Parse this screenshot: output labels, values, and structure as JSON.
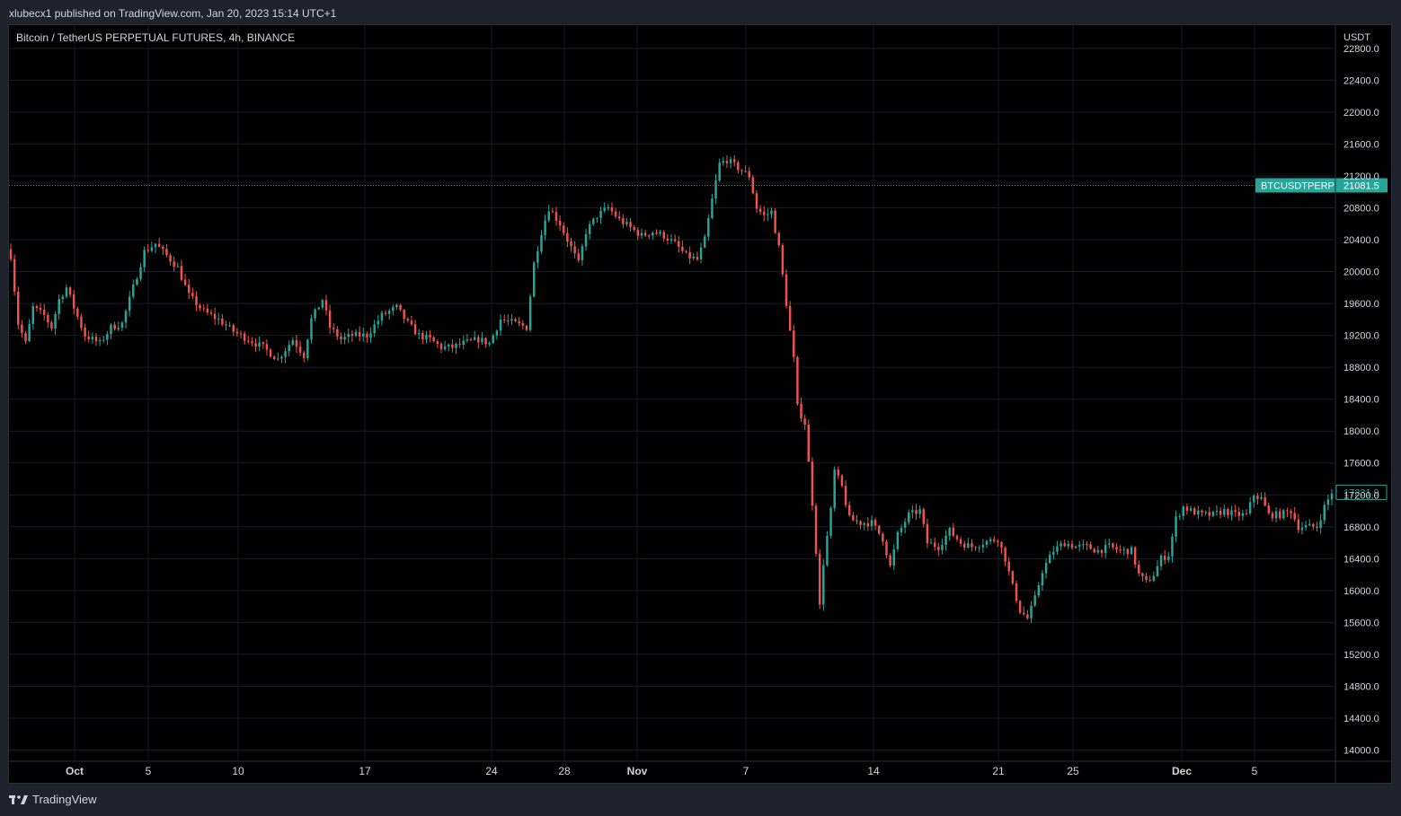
{
  "header": {
    "published_line": "xlubecx1 published on TradingView.com, Jan 20, 2023 15:14 UTC+1"
  },
  "legend": {
    "symbol_line": "Bitcoin / TetherUS PERPETUAL FUTURES, 4h, BINANCE"
  },
  "footer": {
    "brand_name": "TradingView"
  },
  "colors": {
    "up": "#26a69a",
    "down": "#ef5350",
    "background": "#000000",
    "grid": "#1a1d26",
    "axis_text": "#d1d4dc",
    "tag_fill": "#26a69a"
  },
  "chart_data": {
    "type": "candlestick",
    "title": "Bitcoin / TetherUS PERPETUAL FUTURES, 4h, BINANCE",
    "y_unit": "USDT",
    "ylim": [
      13850,
      22950
    ],
    "y_ticks": [
      "22800.0",
      "22400.0",
      "22000.0",
      "21600.0",
      "21200.0",
      "20800.0",
      "20400.0",
      "20000.0",
      "19600.0",
      "19200.0",
      "18800.0",
      "18400.0",
      "18000.0",
      "17600.0",
      "17200.0",
      "16800.0",
      "16400.0",
      "16000.0",
      "15600.0",
      "15200.0",
      "14800.0",
      "14400.0",
      "14000.0"
    ],
    "x_ticks": [
      "Oct",
      "5",
      "10",
      "17",
      "24",
      "28",
      "Nov",
      "7",
      "14",
      "21",
      "25",
      "Dec",
      "5"
    ],
    "bold_x_ticks": [
      "Oct",
      "Nov",
      "Dec"
    ],
    "grid": true,
    "close_path": [
      {
        "t": 0,
        "p": 20200
      },
      {
        "t": 2,
        "p": 19350
      },
      {
        "t": 4,
        "p": 19100
      },
      {
        "t": 6,
        "p": 19550
      },
      {
        "t": 9,
        "p": 19450
      },
      {
        "t": 11,
        "p": 19300
      },
      {
        "t": 13,
        "p": 19650
      },
      {
        "t": 15,
        "p": 19800
      },
      {
        "t": 17,
        "p": 19550
      },
      {
        "t": 20,
        "p": 19200
      },
      {
        "t": 24,
        "p": 19100
      },
      {
        "t": 27,
        "p": 19300
      },
      {
        "t": 30,
        "p": 19350
      },
      {
        "t": 33,
        "p": 19800
      },
      {
        "t": 36,
        "p": 20250
      },
      {
        "t": 39,
        "p": 20350
      },
      {
        "t": 42,
        "p": 20200
      },
      {
        "t": 45,
        "p": 20050
      },
      {
        "t": 48,
        "p": 19700
      },
      {
        "t": 52,
        "p": 19500
      },
      {
        "t": 56,
        "p": 19400
      },
      {
        "t": 60,
        "p": 19250
      },
      {
        "t": 64,
        "p": 19150
      },
      {
        "t": 68,
        "p": 19050
      },
      {
        "t": 72,
        "p": 18900
      },
      {
        "t": 76,
        "p": 19150
      },
      {
        "t": 79,
        "p": 18950
      },
      {
        "t": 81,
        "p": 19400
      },
      {
        "t": 84,
        "p": 19650
      },
      {
        "t": 86,
        "p": 19300
      },
      {
        "t": 89,
        "p": 19150
      },
      {
        "t": 92,
        "p": 19200
      },
      {
        "t": 96,
        "p": 19200
      },
      {
        "t": 100,
        "p": 19450
      },
      {
        "t": 104,
        "p": 19550
      },
      {
        "t": 107,
        "p": 19350
      },
      {
        "t": 110,
        "p": 19200
      },
      {
        "t": 113,
        "p": 19150
      },
      {
        "t": 116,
        "p": 19050
      },
      {
        "t": 119,
        "p": 19050
      },
      {
        "t": 122,
        "p": 19100
      },
      {
        "t": 126,
        "p": 19150
      },
      {
        "t": 129,
        "p": 19100
      },
      {
        "t": 132,
        "p": 19400
      },
      {
        "t": 136,
        "p": 19350
      },
      {
        "t": 139,
        "p": 19300
      },
      {
        "t": 141,
        "p": 20100
      },
      {
        "t": 143,
        "p": 20500
      },
      {
        "t": 145,
        "p": 20800
      },
      {
        "t": 148,
        "p": 20600
      },
      {
        "t": 151,
        "p": 20300
      },
      {
        "t": 153,
        "p": 20100
      },
      {
        "t": 155,
        "p": 20500
      },
      {
        "t": 158,
        "p": 20700
      },
      {
        "t": 161,
        "p": 20800
      },
      {
        "t": 164,
        "p": 20650
      },
      {
        "t": 167,
        "p": 20550
      },
      {
        "t": 170,
        "p": 20450
      },
      {
        "t": 173,
        "p": 20500
      },
      {
        "t": 176,
        "p": 20450
      },
      {
        "t": 179,
        "p": 20350
      },
      {
        "t": 182,
        "p": 20200
      },
      {
        "t": 185,
        "p": 20150
      },
      {
        "t": 187,
        "p": 20400
      },
      {
        "t": 189,
        "p": 20900
      },
      {
        "t": 191,
        "p": 21350
      },
      {
        "t": 193,
        "p": 21400
      },
      {
        "t": 196,
        "p": 21300
      },
      {
        "t": 199,
        "p": 21200
      },
      {
        "t": 201,
        "p": 20800
      },
      {
        "t": 203,
        "p": 20700
      },
      {
        "t": 205,
        "p": 20750
      },
      {
        "t": 207,
        "p": 20300
      },
      {
        "t": 209,
        "p": 19600
      },
      {
        "t": 211,
        "p": 18900
      },
      {
        "t": 212,
        "p": 18300
      },
      {
        "t": 214,
        "p": 18100
      },
      {
        "t": 216,
        "p": 17100
      },
      {
        "t": 217,
        "p": 16500
      },
      {
        "t": 218,
        "p": 15800
      },
      {
        "t": 219,
        "p": 16350
      },
      {
        "t": 221,
        "p": 17000
      },
      {
        "t": 222,
        "p": 17500
      },
      {
        "t": 224,
        "p": 17300
      },
      {
        "t": 226,
        "p": 16900
      },
      {
        "t": 229,
        "p": 16850
      },
      {
        "t": 232,
        "p": 16850
      },
      {
        "t": 235,
        "p": 16650
      },
      {
        "t": 237,
        "p": 16300
      },
      {
        "t": 239,
        "p": 16700
      },
      {
        "t": 242,
        "p": 16950
      },
      {
        "t": 245,
        "p": 17000
      },
      {
        "t": 247,
        "p": 16600
      },
      {
        "t": 250,
        "p": 16550
      },
      {
        "t": 253,
        "p": 16750
      },
      {
        "t": 256,
        "p": 16600
      },
      {
        "t": 259,
        "p": 16550
      },
      {
        "t": 262,
        "p": 16600
      },
      {
        "t": 266,
        "p": 16650
      },
      {
        "t": 268,
        "p": 16400
      },
      {
        "t": 270,
        "p": 16050
      },
      {
        "t": 272,
        "p": 15750
      },
      {
        "t": 274,
        "p": 15650
      },
      {
        "t": 276,
        "p": 15900
      },
      {
        "t": 278,
        "p": 16250
      },
      {
        "t": 281,
        "p": 16500
      },
      {
        "t": 284,
        "p": 16600
      },
      {
        "t": 287,
        "p": 16550
      },
      {
        "t": 290,
        "p": 16550
      },
      {
        "t": 293,
        "p": 16500
      },
      {
        "t": 296,
        "p": 16550
      },
      {
        "t": 299,
        "p": 16500
      },
      {
        "t": 302,
        "p": 16500
      },
      {
        "t": 304,
        "p": 16200
      },
      {
        "t": 306,
        "p": 16100
      },
      {
        "t": 308,
        "p": 16200
      },
      {
        "t": 310,
        "p": 16400
      },
      {
        "t": 312,
        "p": 16450
      },
      {
        "t": 314,
        "p": 16900
      },
      {
        "t": 316,
        "p": 17050
      },
      {
        "t": 318,
        "p": 17000
      },
      {
        "t": 321,
        "p": 16950
      },
      {
        "t": 324,
        "p": 16950
      },
      {
        "t": 327,
        "p": 17000
      },
      {
        "t": 330,
        "p": 16950
      },
      {
        "t": 333,
        "p": 16950
      },
      {
        "t": 335,
        "p": 17200
      },
      {
        "t": 337,
        "p": 17150
      },
      {
        "t": 339,
        "p": 16950
      },
      {
        "t": 342,
        "p": 16950
      },
      {
        "t": 345,
        "p": 17000
      },
      {
        "t": 347,
        "p": 16800
      },
      {
        "t": 349,
        "p": 16800
      },
      {
        "t": 352,
        "p": 16800
      },
      {
        "t": 354,
        "p": 17050
      },
      {
        "t": 356,
        "p": 17231.9
      }
    ],
    "price_tags": [
      {
        "label": "BTCUSDTPERP",
        "value": "21081.5",
        "price": 21081.5,
        "style": "filled"
      },
      {
        "label": "",
        "value": "17231.9",
        "price": 17231.9,
        "style": "outline"
      }
    ]
  }
}
